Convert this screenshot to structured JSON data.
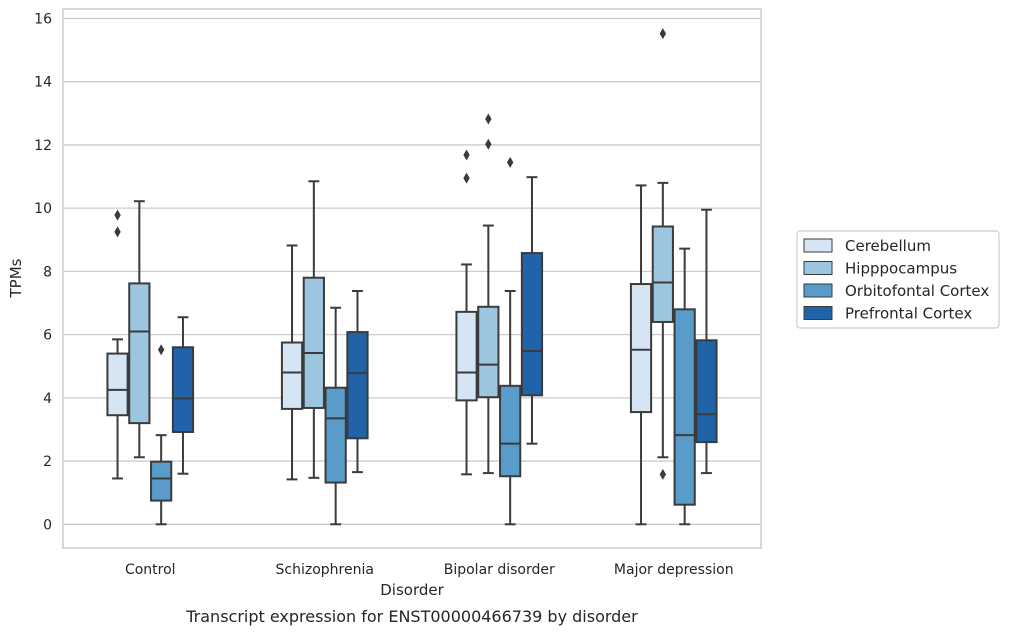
{
  "chart_data": {
    "type": "boxplot",
    "xlabel": "Disorder",
    "ylabel": "TPMs",
    "caption": "Transcript expression for ENST00000466739 by disorder",
    "ylim": [
      -0.75,
      16.3
    ],
    "yticks": [
      0,
      2,
      4,
      6,
      8,
      10,
      12,
      14,
      16
    ],
    "grid": "horizontal",
    "legend_position": "right",
    "categories": [
      "Control",
      "Schizophrenia",
      "Bipolar disorder",
      "Major depression"
    ],
    "series": [
      {
        "name": "Cerebellum",
        "color": "#d6e5f4",
        "boxes": [
          {
            "whisker_low": 1.45,
            "q1": 3.45,
            "median": 4.25,
            "q3": 5.4,
            "whisker_high": 5.85,
            "outliers": [
              9.25,
              9.78
            ]
          },
          {
            "whisker_low": 1.42,
            "q1": 3.65,
            "median": 4.8,
            "q3": 5.75,
            "whisker_high": 8.82,
            "outliers": []
          },
          {
            "whisker_low": 1.58,
            "q1": 3.92,
            "median": 4.8,
            "q3": 6.72,
            "whisker_high": 8.22,
            "outliers": [
              10.95,
              11.68
            ]
          },
          {
            "whisker_low": 0.0,
            "q1": 3.55,
            "median": 5.52,
            "q3": 7.6,
            "whisker_high": 10.72,
            "outliers": []
          }
        ]
      },
      {
        "name": "Hipppocampus",
        "color": "#9cc6e0",
        "boxes": [
          {
            "whisker_low": 2.12,
            "q1": 3.2,
            "median": 6.1,
            "q3": 7.62,
            "whisker_high": 10.22,
            "outliers": []
          },
          {
            "whisker_low": 1.47,
            "q1": 3.68,
            "median": 5.42,
            "q3": 7.8,
            "whisker_high": 10.85,
            "outliers": []
          },
          {
            "whisker_low": 1.62,
            "q1": 4.02,
            "median": 5.05,
            "q3": 6.88,
            "whisker_high": 9.45,
            "outliers": [
              12.02,
              12.82
            ]
          },
          {
            "whisker_low": 2.12,
            "q1": 6.4,
            "median": 7.65,
            "q3": 9.42,
            "whisker_high": 10.8,
            "outliers": [
              1.58,
              15.52
            ]
          }
        ]
      },
      {
        "name": "Orbitofontal Cortex",
        "color": "#5a9cc9",
        "boxes": [
          {
            "whisker_low": 0.0,
            "q1": 0.75,
            "median": 1.45,
            "q3": 1.98,
            "whisker_high": 2.82,
            "outliers": [
              5.52
            ]
          },
          {
            "whisker_low": 0.0,
            "q1": 1.32,
            "median": 3.35,
            "q3": 4.32,
            "whisker_high": 6.85,
            "outliers": []
          },
          {
            "whisker_low": 0.0,
            "q1": 1.52,
            "median": 2.55,
            "q3": 4.38,
            "whisker_high": 7.38,
            "outliers": [
              11.45
            ]
          },
          {
            "whisker_low": 0.0,
            "q1": 0.62,
            "median": 2.82,
            "q3": 6.8,
            "whisker_high": 8.72,
            "outliers": []
          }
        ]
      },
      {
        "name": "Prefrontal Cortex",
        "color": "#2163a9",
        "boxes": [
          {
            "whisker_low": 1.6,
            "q1": 2.92,
            "median": 3.98,
            "q3": 5.6,
            "whisker_high": 6.55,
            "outliers": []
          },
          {
            "whisker_low": 1.65,
            "q1": 2.72,
            "median": 4.78,
            "q3": 6.08,
            "whisker_high": 7.38,
            "outliers": []
          },
          {
            "whisker_low": 2.55,
            "q1": 4.08,
            "median": 5.48,
            "q3": 8.58,
            "whisker_high": 10.98,
            "outliers": []
          },
          {
            "whisker_low": 1.62,
            "q1": 2.6,
            "median": 3.48,
            "q3": 5.82,
            "whisker_high": 9.95,
            "outliers": []
          }
        ]
      }
    ]
  }
}
